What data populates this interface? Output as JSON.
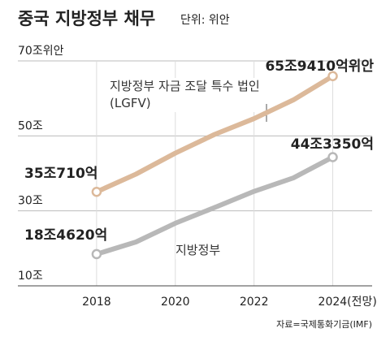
{
  "chart_data": {
    "type": "line",
    "title": "중국 지방정부 채무",
    "subtitle": "단위: 위안",
    "source": "자료=국제통화기금(IMF)",
    "x": [
      2018,
      2019,
      2020,
      2021,
      2022,
      2023,
      2024
    ],
    "xlim": [
      2016,
      2025
    ],
    "xticks": [
      2018,
      2020,
      2022,
      {
        "value": 2024,
        "label": "2024(전망)"
      }
    ],
    "ylim": [
      10,
      70
    ],
    "yticks": [
      {
        "value": 10,
        "label": "10조"
      },
      {
        "value": 30,
        "label": "30조"
      },
      {
        "value": 50,
        "label": "50조"
      },
      {
        "value": 70,
        "label": "70조위안"
      }
    ],
    "grid": true,
    "series": [
      {
        "name": "지방정부 자금 조달 특수 법인(LGFV)",
        "color": "#dcb99a",
        "values": [
          35.071,
          39.8,
          45.4,
          50.4,
          54.6,
          59.6,
          65.941
        ],
        "value_labels": [
          "35조710억",
          null,
          null,
          null,
          null,
          null,
          "65조9410억위안"
        ]
      },
      {
        "name": "지방정부",
        "color": "#b8b8b8",
        "values": [
          18.462,
          21.7,
          26.7,
          30.9,
          35.2,
          38.8,
          44.335
        ],
        "value_labels": [
          "18조4620억",
          null,
          null,
          null,
          null,
          null,
          "44조3350억"
        ]
      }
    ]
  }
}
